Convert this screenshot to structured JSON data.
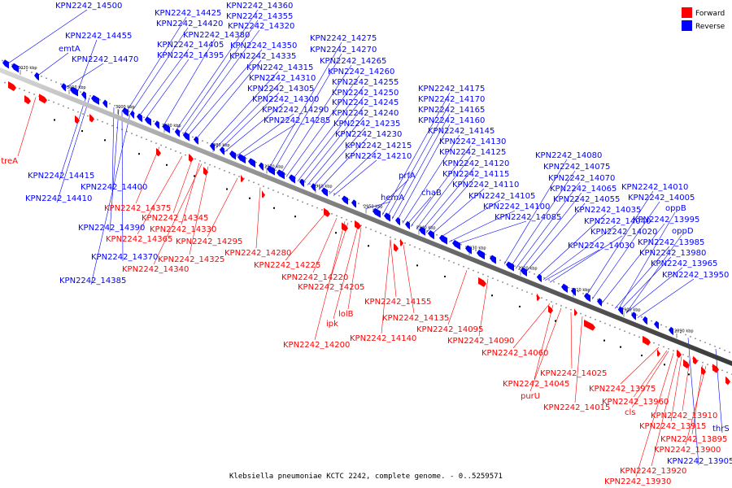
{
  "caption": "Klebsiella pneumoniae KCTC 2242, complete genome. - 0..5259571",
  "legend": {
    "forward": {
      "label": "Forward",
      "color": "#ff0000"
    },
    "reverse": {
      "label": "Reverse",
      "color": "#0000ff"
    }
  },
  "ticks": [
    "3020 kbp",
    "3010 kbp",
    "3000 kbp",
    "2990 kbp",
    "2980 kbp",
    "2970 kbp",
    "2960 kbp",
    "2950 kbp",
    "2940 kbp",
    "2930 kbp",
    "2920 kbp",
    "2910 kbp",
    "2900 kbp",
    "2890 kbp"
  ],
  "reverse_labels": [
    "KPN2242_14500",
    "emtA",
    "KPN2242_14470",
    "KPN2242_14455",
    "KPN2242_14425",
    "KPN2242_14420",
    "KPN2242_14405",
    "KPN2242_14395",
    "KPN2242_14380",
    "KPN2242_14360",
    "KPN2242_14355",
    "KPN2242_14350",
    "KPN2242_14335",
    "KPN2242_14320",
    "KPN2242_14315",
    "KPN2242_14310",
    "KPN2242_14305",
    "KPN2242_14300",
    "KPN2242_14290",
    "KPN2242_14285",
    "KPN2242_14275",
    "KPN2242_14270",
    "KPN2242_14265",
    "KPN2242_14260",
    "KPN2242_14255",
    "KPN2242_14250",
    "KPN2242_14245",
    "KPN2242_14240",
    "KPN2242_14235",
    "KPN2242_14230",
    "KPN2242_14215",
    "KPN2242_14210",
    "KPN2242_14175",
    "KPN2242_14170",
    "KPN2242_14165",
    "KPN2242_14160",
    "KPN2242_14145",
    "KPN2242_14130",
    "KPN2242_14125",
    "KPN2242_14120",
    "KPN2242_14115",
    "KPN2242_14110",
    "KPN2242_14105",
    "KPN2242_14100",
    "KPN2242_14085",
    "prfA",
    "hemA",
    "chaB",
    "KPN2242_14080",
    "KPN2242_14075",
    "KPN2242_14070",
    "KPN2242_14065",
    "KPN2242_14055",
    "KPN2242_14035",
    "KPN2242_14040",
    "KPN2242_14020",
    "KPN2242_14030",
    "KPN2242_14010",
    "KPN2242_14005",
    "oppB",
    "KPN2242_13995",
    "oppD",
    "KPN2242_13985",
    "KPN2242_13980",
    "KPN2242_13965",
    "KPN2242_13950",
    "KPN2242_14415",
    "KPN2242_14410",
    "KPN2242_14400",
    "KPN2242_14390",
    "KPN2242_14370",
    "KPN2242_14385",
    "thrS",
    "KPN2242_13905"
  ],
  "forward_labels": [
    "treA",
    "KPN2242_14375",
    "KPN2242_14345",
    "KPN2242_14330",
    "KPN2242_14365",
    "KPN2242_14325",
    "KPN2242_14340",
    "KPN2242_14295",
    "KPN2242_14280",
    "KPN2242_14225",
    "KPN2242_14220",
    "KPN2242_14205",
    "KPN2242_14155",
    "lolB",
    "KPN2242_14135",
    "ipk",
    "KPN2242_14140",
    "KPN2242_14200",
    "KPN2242_14095",
    "KPN2242_14090",
    "KPN2242_14060",
    "KPN2242_14025",
    "KPN2242_14045",
    "purU",
    "KPN2242_14015",
    "KPN2242_13975",
    "KPN2242_13960",
    "cls",
    "KPN2242_13910",
    "KPN2242_13915",
    "KPN2242_13895",
    "KPN2242_13900",
    "KPN2242_13920",
    "KPN2242_13930"
  ]
}
